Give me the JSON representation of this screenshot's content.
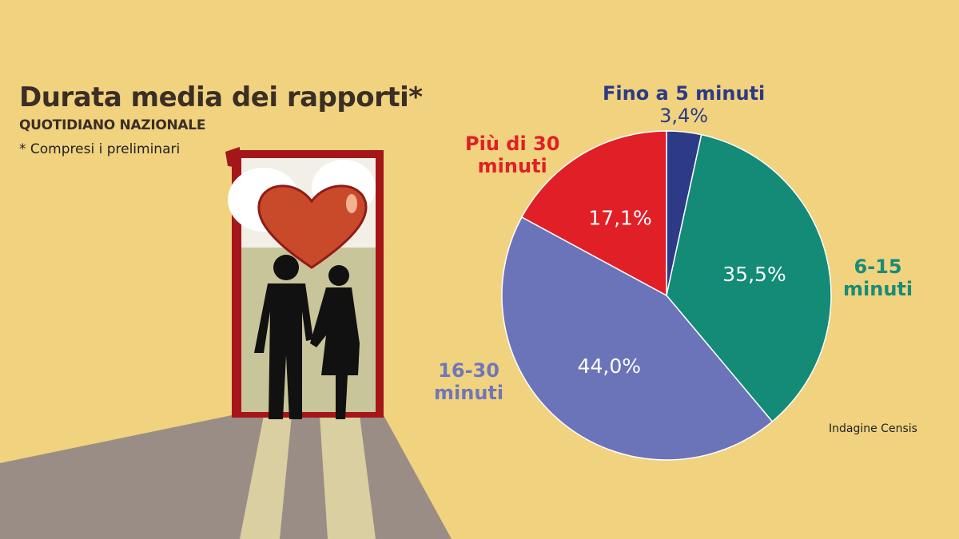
{
  "title": "Durata media dei rapporti*",
  "source": "QUOTIDIANO NAZIONALE",
  "note": "* Compresi i preliminari",
  "credit": "Indagine Censis",
  "chart_data": {
    "type": "pie",
    "title": "Durata media dei rapporti*",
    "categories": [
      "Fino a 5 minuti",
      "6-15 minuti",
      "16-30 minuti",
      "Più di 30 minuti"
    ],
    "values": [
      3.4,
      35.5,
      44.0,
      17.1
    ],
    "value_labels": [
      "3,4%",
      "35,5%",
      "44,0%",
      "17,1%"
    ],
    "colors": [
      "#2d3a85",
      "#138b76",
      "#6b74b8",
      "#e11f26"
    ],
    "label_lines": [
      [
        "Fino a 5 minuti"
      ],
      [
        "6-15",
        "minuti"
      ],
      [
        "16-30",
        "minuti"
      ],
      [
        "Più di 30",
        "minuti"
      ]
    ]
  }
}
